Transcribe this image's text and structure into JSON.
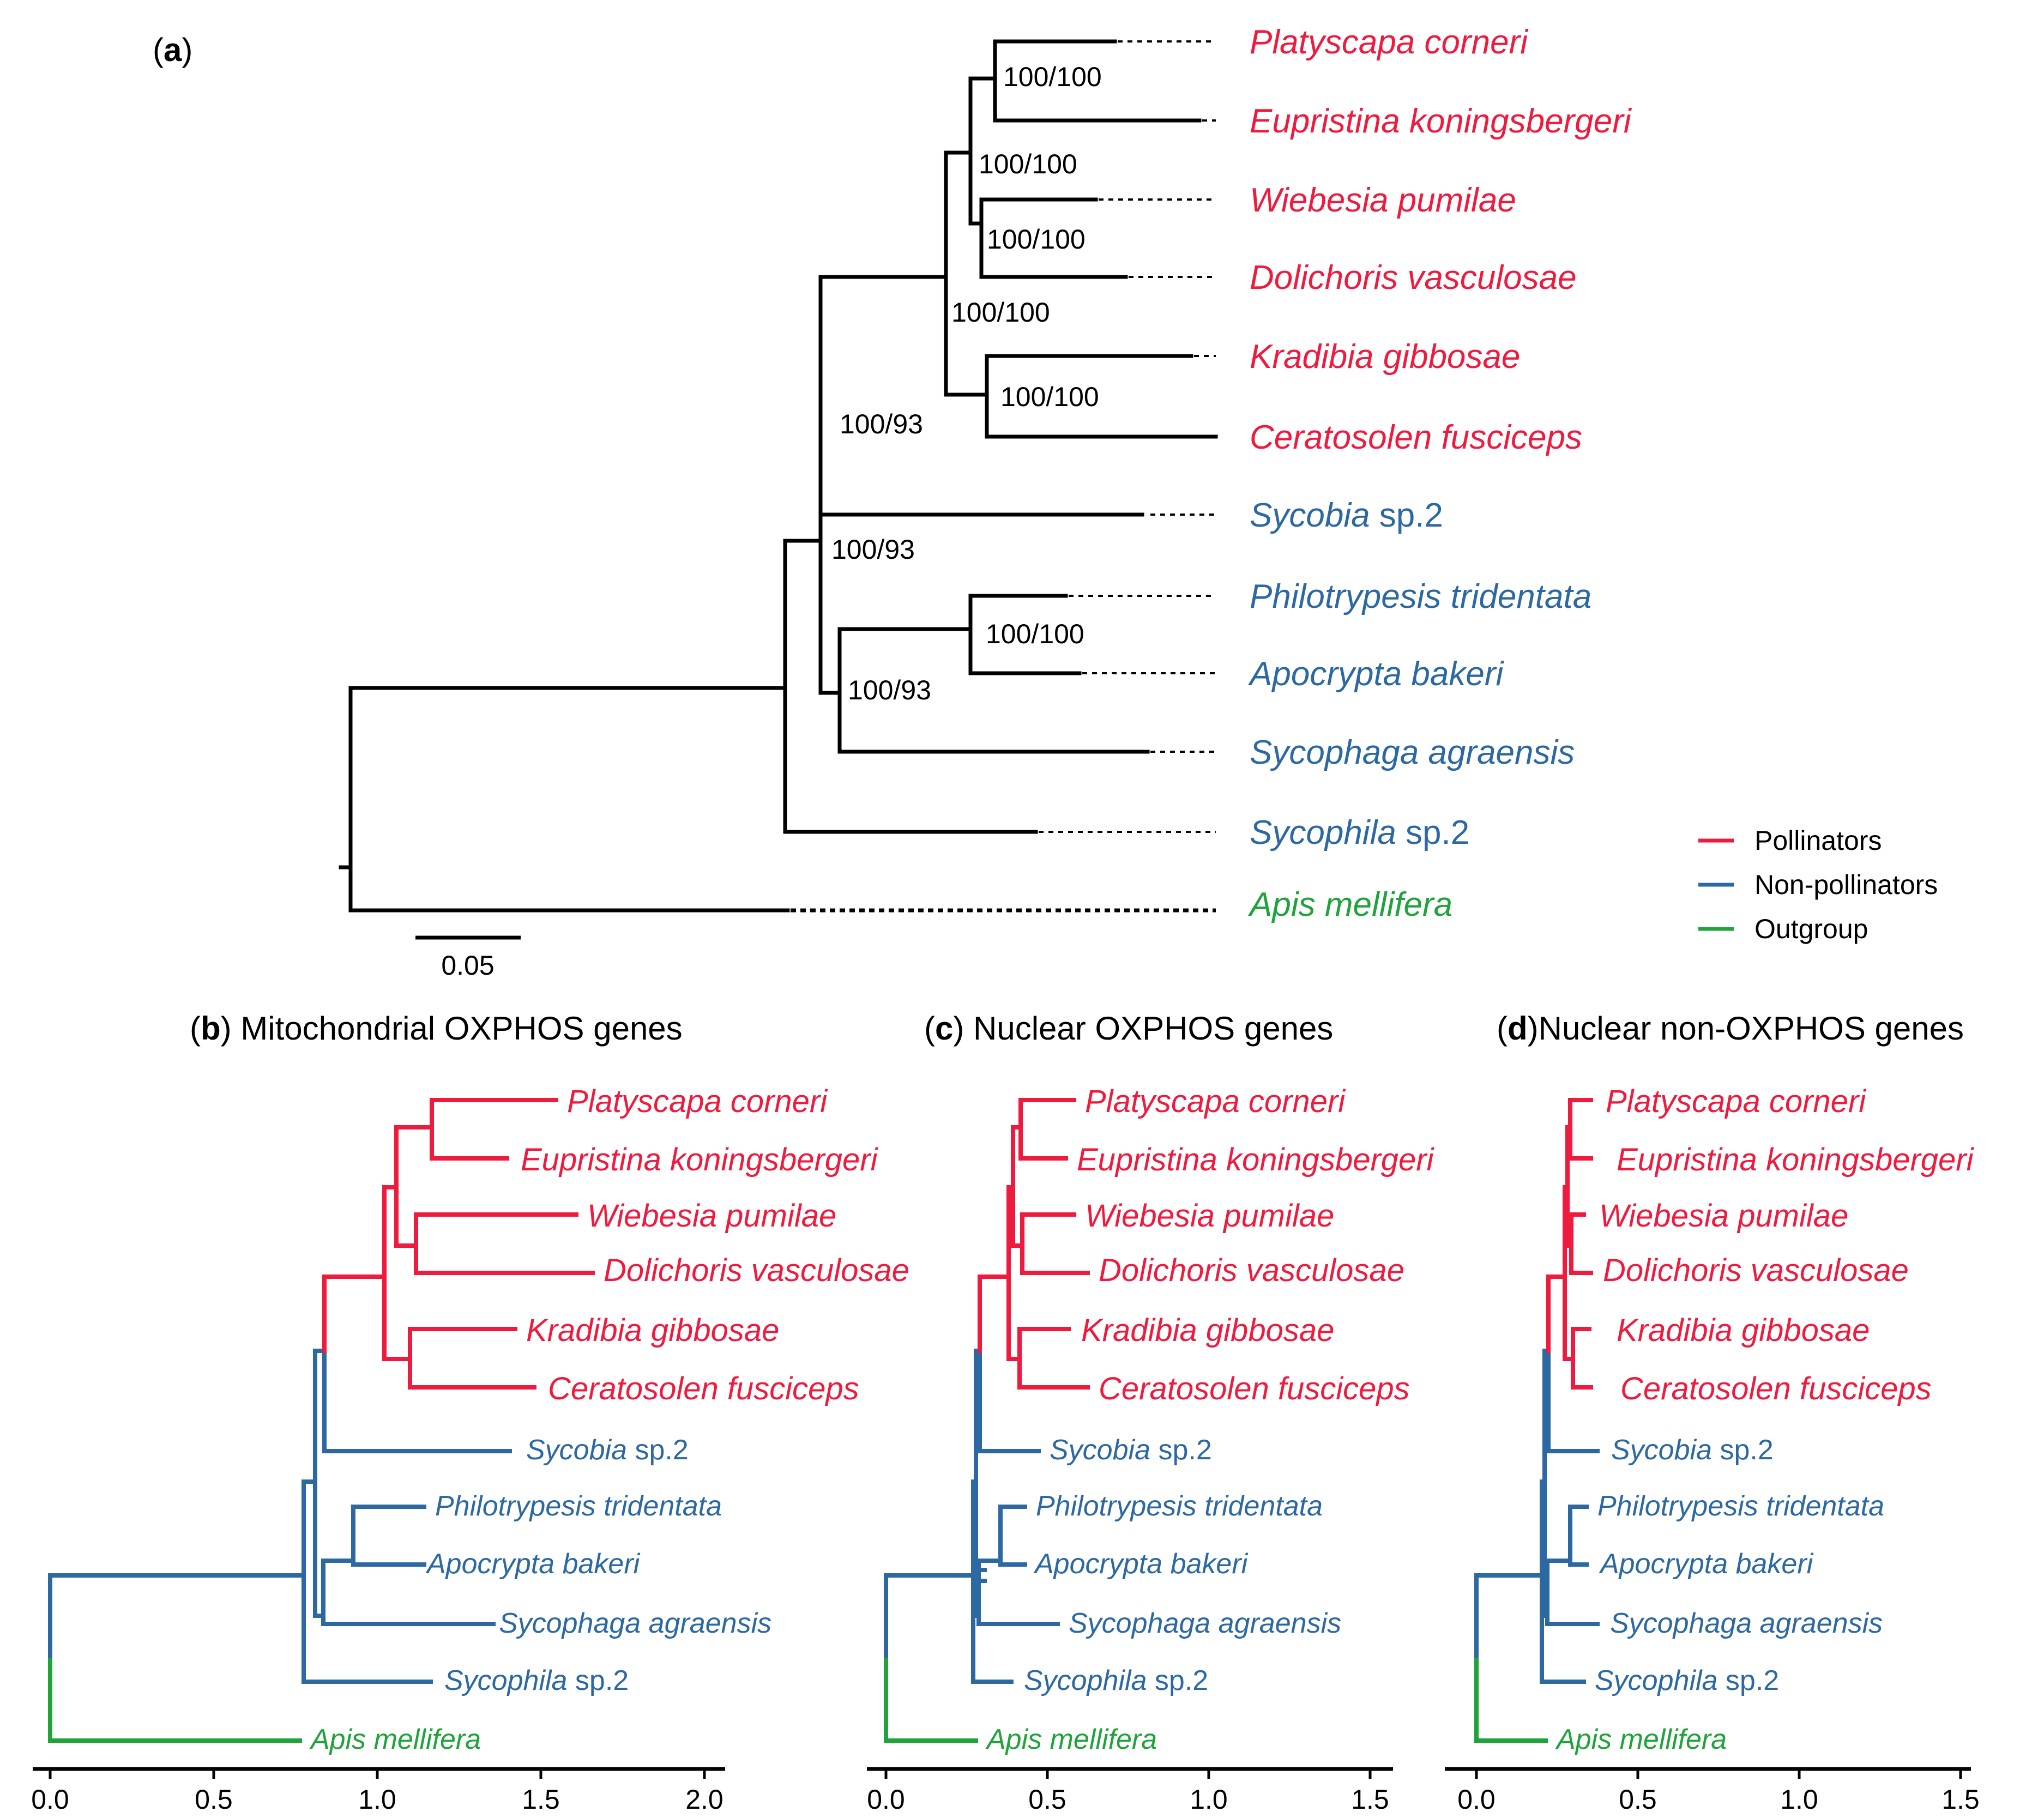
{
  "colors": {
    "pollinator": "#ef1b3f",
    "nonpollinator": "#2c68a1",
    "outgroup": "#20a33b",
    "main_tree": "#000000"
  },
  "panel_a": {
    "label_open": "(",
    "label_letter": "a",
    "label_close": ")",
    "taxa": [
      {
        "genus": "Platyscapa corneri",
        "suffix": "",
        "group": "pollinator"
      },
      {
        "genus": "Eupristina koningsbergeri",
        "suffix": "",
        "group": "pollinator"
      },
      {
        "genus": "Wiebesia pumilae",
        "suffix": "",
        "group": "pollinator"
      },
      {
        "genus": "Dolichoris vasculosae",
        "suffix": "",
        "group": "pollinator"
      },
      {
        "genus": "Kradibia gibbosae",
        "suffix": "",
        "group": "pollinator"
      },
      {
        "genus": "Ceratosolen fusciceps",
        "suffix": "",
        "group": "pollinator"
      },
      {
        "genus": "Sycobia",
        "suffix": " sp.2",
        "group": "nonpollinator"
      },
      {
        "genus": "Philotrypesis tridentata",
        "suffix": "",
        "group": "nonpollinator"
      },
      {
        "genus": "Apocrypta bakeri",
        "suffix": "",
        "group": "nonpollinator"
      },
      {
        "genus": "Sycophaga agraensis",
        "suffix": "",
        "group": "nonpollinator"
      },
      {
        "genus": "Sycophila",
        "suffix": " sp.2",
        "group": "nonpollinator"
      },
      {
        "genus": "Apis mellifera",
        "suffix": "",
        "group": "outgroup"
      }
    ],
    "supports": [
      "100/100",
      "100/100",
      "100/100",
      "100/100",
      "100/100",
      "100/93",
      "100/93",
      "100/100",
      "100/93"
    ],
    "scale_bar": "0.05"
  },
  "legend": [
    {
      "label": "Pollinators",
      "group": "pollinator"
    },
    {
      "label": "Non-pollinators",
      "group": "nonpollinator"
    },
    {
      "label": "Outgroup",
      "group": "outgroup"
    }
  ],
  "panels": [
    {
      "letter": "b",
      "title": "Mitochondrial OXPHOS genes",
      "axis_ticks": [
        "0.0",
        "0.5",
        "1.0",
        "1.5",
        "2.0"
      ]
    },
    {
      "letter": "c",
      "title": "Nuclear OXPHOS genes",
      "axis_ticks": [
        "0.0",
        "0.5",
        "1.0",
        "1.5"
      ]
    },
    {
      "letter": "d",
      "title": "Nuclear non-OXPHOS genes",
      "axis_ticks": [
        "0.0",
        "0.5",
        "1.0",
        "1.5"
      ]
    }
  ]
}
